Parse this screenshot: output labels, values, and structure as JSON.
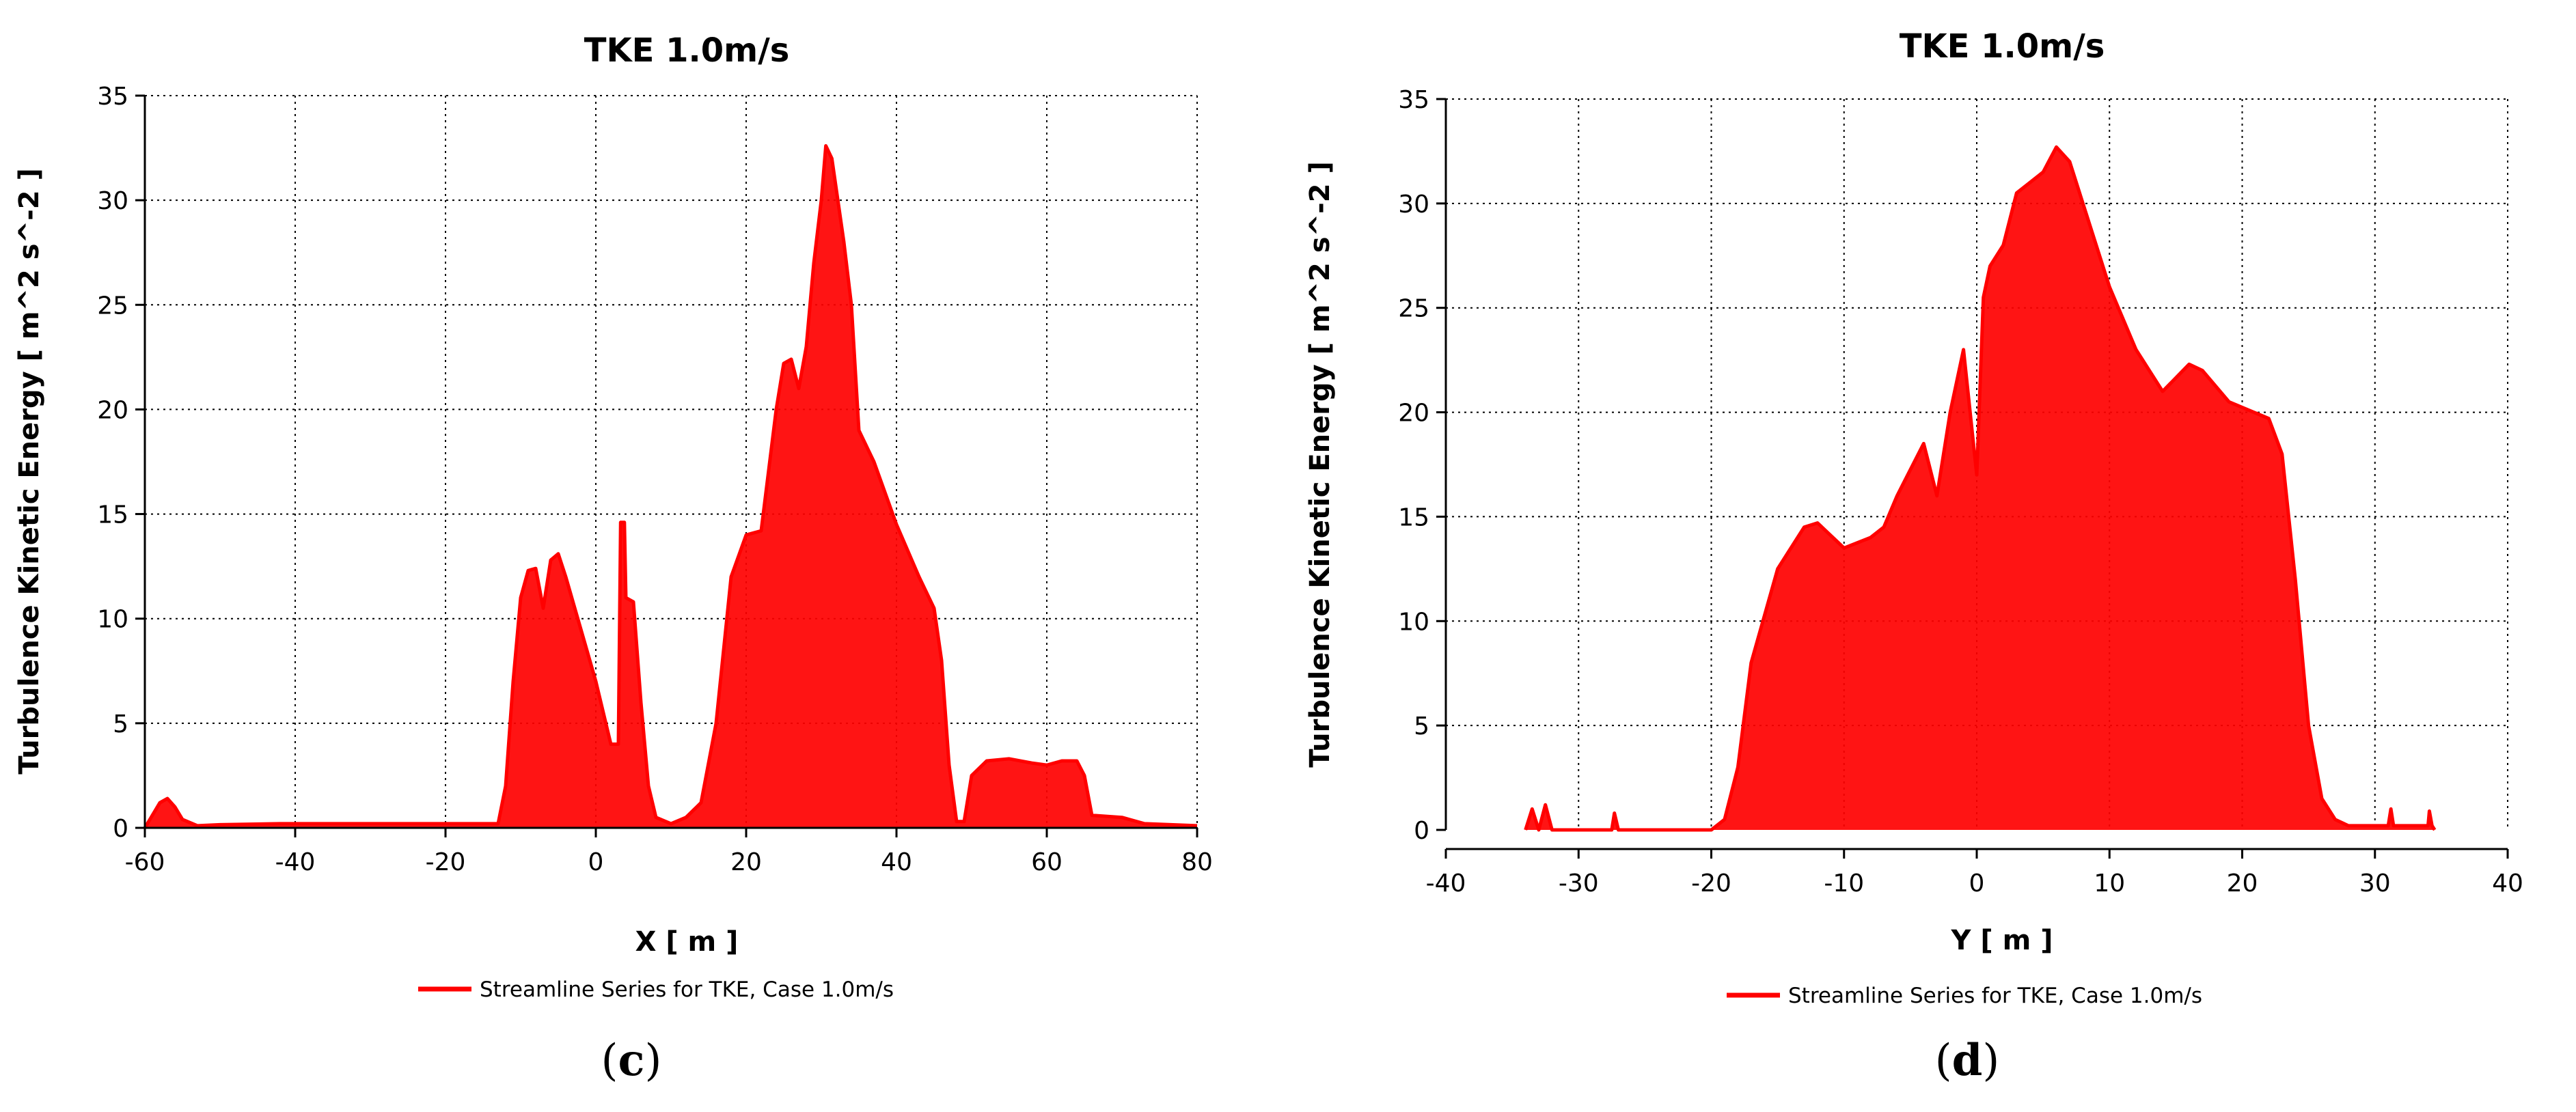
{
  "colors": {
    "series": "#ff0000",
    "grid": "#000000",
    "axis": "#000000"
  },
  "chart_data": [
    {
      "type": "line",
      "panel_label": "c",
      "title": "TKE 1.0m/s",
      "xlabel": "X [ m ]",
      "ylabel": "Turbulence Kinetic Energy  [ m^2 s^-2 ]",
      "xlim": [
        -60,
        80
      ],
      "ylim": [
        0,
        35
      ],
      "xticks": [
        -60,
        -40,
        -20,
        0,
        20,
        40,
        60,
        80
      ],
      "yticks": [
        0,
        5,
        10,
        15,
        20,
        25,
        30,
        35
      ],
      "grid": true,
      "legend_position": "bottom-center",
      "series": [
        {
          "name": "Streamline Series for TKE, Case 1.0m/s",
          "envelope": [
            [
              -60,
              0.0
            ],
            [
              -59,
              0.6
            ],
            [
              -58,
              1.2
            ],
            [
              -57,
              1.4
            ],
            [
              -56,
              1.0
            ],
            [
              -55,
              0.4
            ],
            [
              -53,
              0.1
            ],
            [
              -50,
              0.15
            ],
            [
              -42,
              0.2
            ],
            [
              -20,
              0.2
            ],
            [
              -13,
              0.2
            ],
            [
              -12,
              2.0
            ],
            [
              -11,
              7.0
            ],
            [
              -10,
              11.0
            ],
            [
              -9,
              12.3
            ],
            [
              -8,
              12.4
            ],
            [
              -7,
              10.5
            ],
            [
              -6,
              12.8
            ],
            [
              -5,
              13.1
            ],
            [
              -4,
              12.0
            ],
            [
              -2,
              9.5
            ],
            [
              0,
              7.0
            ],
            [
              2,
              4.0
            ],
            [
              3,
              4.0
            ],
            [
              3.3,
              14.6
            ],
            [
              3.8,
              14.6
            ],
            [
              4.0,
              11.0
            ],
            [
              5,
              10.8
            ],
            [
              6,
              6.0
            ],
            [
              7,
              2.0
            ],
            [
              8,
              0.5
            ],
            [
              10,
              0.2
            ],
            [
              12,
              0.5
            ],
            [
              14,
              1.2
            ],
            [
              16,
              5.0
            ],
            [
              18,
              12.0
            ],
            [
              20,
              14.0
            ],
            [
              22,
              14.2
            ],
            [
              24,
              20.0
            ],
            [
              25,
              22.2
            ],
            [
              26,
              22.4
            ],
            [
              27,
              21.0
            ],
            [
              28,
              23.0
            ],
            [
              29,
              27.0
            ],
            [
              30,
              30.0
            ],
            [
              30.6,
              32.6
            ],
            [
              31.4,
              32.0
            ],
            [
              32,
              30.5
            ],
            [
              33,
              28.0
            ],
            [
              34,
              25.0
            ],
            [
              35,
              19.0
            ],
            [
              37,
              17.5
            ],
            [
              40,
              14.5
            ],
            [
              43,
              12.0
            ],
            [
              45,
              10.5
            ],
            [
              46,
              8.0
            ],
            [
              47,
              3.0
            ],
            [
              48,
              0.3
            ],
            [
              49,
              0.3
            ],
            [
              50,
              2.5
            ],
            [
              52,
              3.2
            ],
            [
              55,
              3.3
            ],
            [
              58,
              3.1
            ],
            [
              60,
              3.0
            ],
            [
              62,
              3.2
            ],
            [
              64,
              3.2
            ],
            [
              65,
              2.5
            ],
            [
              66,
              0.6
            ],
            [
              70,
              0.5
            ],
            [
              73,
              0.2
            ],
            [
              80,
              0.1
            ]
          ]
        }
      ]
    },
    {
      "type": "line",
      "panel_label": "d",
      "title": "TKE 1.0m/s",
      "xlabel": "Y [ m ]",
      "ylabel": "Turbulence Kinetic Energy  [ m^2 s^-2 ]",
      "xlim": [
        -40,
        40
      ],
      "ylim": [
        0,
        35
      ],
      "xticks": [
        -40,
        -30,
        -20,
        -10,
        0,
        10,
        20,
        30,
        40
      ],
      "yticks": [
        0,
        5,
        10,
        15,
        20,
        25,
        30,
        35
      ],
      "grid": true,
      "legend_position": "bottom-center",
      "series": [
        {
          "name": "Streamline Series for TKE, Case 1.0m/s",
          "envelope": [
            [
              -34,
              0.0
            ],
            [
              -33.5,
              1.0
            ],
            [
              -33,
              0.0
            ],
            [
              -32.5,
              1.2
            ],
            [
              -32,
              0.0
            ],
            [
              -27.5,
              0.0
            ],
            [
              -27.3,
              0.8
            ],
            [
              -27,
              0.0
            ],
            [
              -20,
              0.0
            ],
            [
              -19,
              0.5
            ],
            [
              -18,
              3.0
            ],
            [
              -17,
              8.0
            ],
            [
              -15,
              12.5
            ],
            [
              -13,
              14.5
            ],
            [
              -12,
              14.7
            ],
            [
              -10,
              13.5
            ],
            [
              -8,
              14.0
            ],
            [
              -7,
              14.5
            ],
            [
              -6,
              16.0
            ],
            [
              -4,
              18.5
            ],
            [
              -3,
              16.0
            ],
            [
              -2,
              20.0
            ],
            [
              -1,
              23.0
            ],
            [
              0,
              17.0
            ],
            [
              0.5,
              25.5
            ],
            [
              1,
              27.0
            ],
            [
              2,
              28.0
            ],
            [
              3,
              30.5
            ],
            [
              4,
              31.0
            ],
            [
              5,
              31.5
            ],
            [
              6,
              32.7
            ],
            [
              7,
              32.0
            ],
            [
              8,
              30.0
            ],
            [
              10,
              26.0
            ],
            [
              12,
              23.0
            ],
            [
              14,
              21.0
            ],
            [
              16,
              22.3
            ],
            [
              17,
              22.0
            ],
            [
              19,
              20.5
            ],
            [
              22,
              19.7
            ],
            [
              23,
              18.0
            ],
            [
              24,
              12.0
            ],
            [
              25,
              5.0
            ],
            [
              26,
              1.5
            ],
            [
              27,
              0.5
            ],
            [
              28,
              0.2
            ],
            [
              31,
              0.2
            ],
            [
              31.2,
              1.0
            ],
            [
              31.4,
              0.2
            ],
            [
              34,
              0.2
            ],
            [
              34.1,
              0.9
            ],
            [
              34.3,
              0.2
            ],
            [
              34.5,
              0.0
            ]
          ]
        }
      ]
    }
  ]
}
